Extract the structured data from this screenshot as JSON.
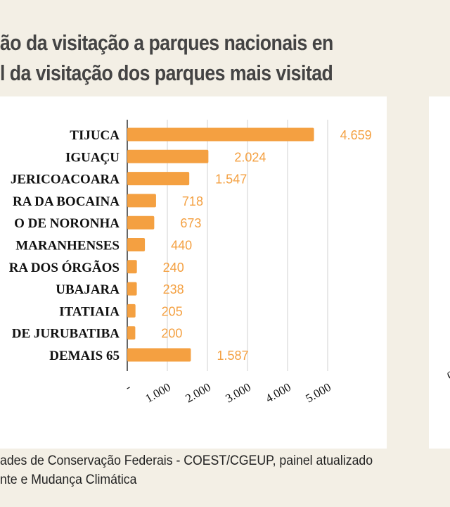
{
  "title": {
    "line1": "ão da visitação a parques nacionais en",
    "line2": "l da visitação dos parques mais visitad"
  },
  "colors": {
    "background": "#f3efe5",
    "panel": "#ffffff",
    "bar": "#f4a041",
    "value_label": "#f4a041",
    "grid": "#d9d9d9",
    "axis": "#666666",
    "title": "#444444"
  },
  "chart_data": {
    "type": "bar",
    "orientation": "horizontal",
    "categories": [
      "TIJUCA",
      "IGUAÇU",
      "JERICOACOARA",
      "RA DA BOCAINA",
      "O DE NORONHA",
      " MARANHENSES",
      "RA DOS ÓRGÃOS",
      "UBAJARA",
      "ITATIAIA",
      "DE JURUBATIBA",
      "DEMAIS 65"
    ],
    "values": [
      4659,
      2024,
      1547,
      718,
      673,
      440,
      240,
      238,
      205,
      200,
      1587
    ],
    "value_labels": [
      "4.659",
      "2.024",
      "1.547",
      "718",
      "673",
      "440",
      "240",
      "238",
      "205",
      "200",
      "1.587"
    ],
    "xlim": [
      0,
      5000
    ],
    "x_ticks": [
      0,
      1000,
      2000,
      3000,
      4000,
      5000
    ],
    "x_tick_labels": [
      "-",
      "1.000",
      "2.000",
      "3.000",
      "4.000",
      "5.000"
    ],
    "grid": true,
    "title": "",
    "xlabel": "",
    "ylabel": ""
  },
  "right_panel": {
    "partial_tick_label": "0"
  },
  "footer": {
    "line1": "ades de Conservação Federais - COEST/CGEUP, painel atualizado",
    "line2": "nte e Mudança Climática"
  }
}
